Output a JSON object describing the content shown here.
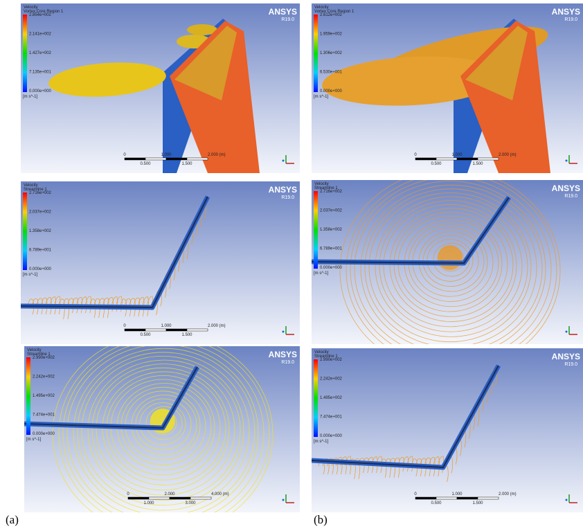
{
  "panels": [
    {
      "legend": {
        "title": "Velocity",
        "subtitle": "Vortex Core Region 1",
        "ticks": [
          "2.854e+002",
          "2.141e+002",
          "1.427e+002",
          "7.135e+001",
          "0.000e+000"
        ],
        "unit": "[m s^-1]"
      },
      "logo": "ANSYS",
      "version": "R19.0",
      "scale": {
        "top": [
          "0",
          "1.000",
          "2.000 (m)"
        ],
        "bottom": [
          "0.500",
          "1.500"
        ]
      }
    },
    {
      "legend": {
        "title": "Velocity",
        "subtitle": "Vortex Core Region 1",
        "ticks": [
          "2.612e+002",
          "1.959e+002",
          "1.306e+002",
          "6.530e+001",
          "0.000e+000"
        ],
        "unit": "[m s^-1]"
      },
      "logo": "ANSYS",
      "version": "R19.0",
      "scale": {
        "top": [
          "0",
          "1.000",
          "2.000 (m)"
        ],
        "bottom": [
          "0.500",
          "1.500"
        ]
      }
    },
    {
      "legend": {
        "title": "Velocity",
        "subtitle": "Streamline 1",
        "ticks": [
          "2.716e+002",
          "2.037e+002",
          "1.358e+002",
          "6.789e+001",
          "0.000e+000"
        ],
        "unit": "[m s^-1]"
      },
      "logo": "ANSYS",
      "version": "R19.0",
      "scale": {
        "top": [
          "0",
          "1.000",
          "2.000 (m)"
        ],
        "bottom": [
          "0.500",
          "1.500"
        ]
      }
    },
    {
      "legend": {
        "title": "Velocity",
        "subtitle": "Streamline 1",
        "ticks": [
          "2.716e+002",
          "2.037e+002",
          "1.358e+002",
          "6.789e+001",
          "0.000e+000"
        ],
        "unit": "[m s^-1]"
      },
      "logo": "ANSYS",
      "version": "R19.0"
    },
    {
      "legend": {
        "title": "Velocity",
        "subtitle": "Streamline 1",
        "ticks": [
          "2.990e+002",
          "2.242e+002",
          "1.495e+002",
          "7.474e+001",
          "0.000e+000"
        ],
        "unit": "[m s^-1]"
      },
      "logo": "ANSYS",
      "version": "R19.0",
      "scale": {
        "top": [
          "0",
          "2.000",
          "4.000 (m)"
        ],
        "bottom": [
          "1.000",
          "3.000"
        ]
      }
    },
    {
      "legend": {
        "title": "Velocity",
        "subtitle": "Streamline 1",
        "ticks": [
          "2.990e+002",
          "2.242e+002",
          "1.495e+002",
          "7.474e+001",
          "0.000e+000"
        ],
        "unit": "[m s^-1]"
      },
      "logo": "ANSYS",
      "version": "R19.0",
      "scale": {
        "top": [
          "0",
          "1.000",
          "2.000 (m)"
        ],
        "bottom": [
          "0.500",
          "1.500"
        ]
      }
    }
  ],
  "captions": [
    "(a)",
    "(b)"
  ]
}
